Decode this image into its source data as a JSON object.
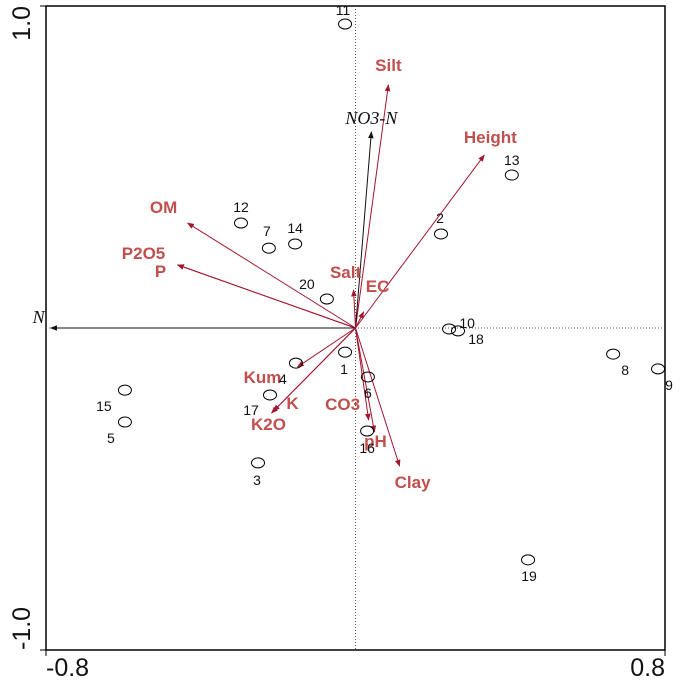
{
  "chart_data": {
    "type": "biplot",
    "xlim": [
      -0.8,
      0.8
    ],
    "ylim": [
      -1,
      1
    ],
    "xticks": [
      -0.8,
      0.8
    ],
    "yticks": [
      {
        "value": -1,
        "label": "-1.0"
      },
      {
        "value": 1,
        "label": "1.0"
      }
    ],
    "points": {
      "labels": [
        "11",
        "13",
        "12",
        "7",
        "14",
        "2",
        "20",
        "10",
        "18",
        "8",
        "9",
        "1",
        "4",
        "6",
        "17",
        "15",
        "5",
        "16",
        "3",
        "19"
      ],
      "x": [
        -0.027,
        0.404,
        -0.296,
        -0.224,
        -0.156,
        0.221,
        -0.074,
        0.242,
        0.265,
        0.666,
        0.782,
        -0.027,
        -0.154,
        0.032,
        -0.221,
        -0.596,
        -0.596,
        0.03,
        -0.252,
        0.446
      ],
      "y": [
        0.944,
        0.475,
        0.326,
        0.248,
        0.261,
        0.292,
        0.09,
        -0.003,
        -0.009,
        -0.081,
        -0.127,
        -0.075,
        -0.109,
        -0.152,
        -0.208,
        -0.193,
        -0.292,
        -0.32,
        -0.419,
        -0.72
      ]
    },
    "vectors": {
      "labels": [
        "Silt",
        "NO3-N",
        "Height",
        "OM",
        "P2O5",
        "P",
        "Salt",
        "EC",
        "N",
        "Kum",
        "K",
        "K2O",
        "CO3",
        "pH",
        "Clay"
      ],
      "x": [
        0.085,
        0.041,
        0.333,
        -0.434,
        -0.46,
        -0.46,
        -0.005,
        0.021,
        -0.788,
        -0.15,
        -0.217,
        -0.212,
        0.034,
        0.049,
        0.114
      ],
      "y": [
        0.755,
        0.609,
        0.537,
        0.326,
        0.196,
        0.196,
        0.118,
        0.05,
        0.0,
        -0.121,
        -0.264,
        -0.258,
        -0.286,
        -0.323,
        -0.429
      ],
      "colors": [
        "#a3162e",
        "#111111",
        "#a3162e",
        "#a3162e",
        "#a3162e",
        "#a3162e",
        "#a3162e",
        "#a3162e",
        "#111111",
        "#a3162e",
        "#a3162e",
        "#a3162e",
        "#a3162e",
        "#a3162e",
        "#a3162e"
      ]
    }
  }
}
